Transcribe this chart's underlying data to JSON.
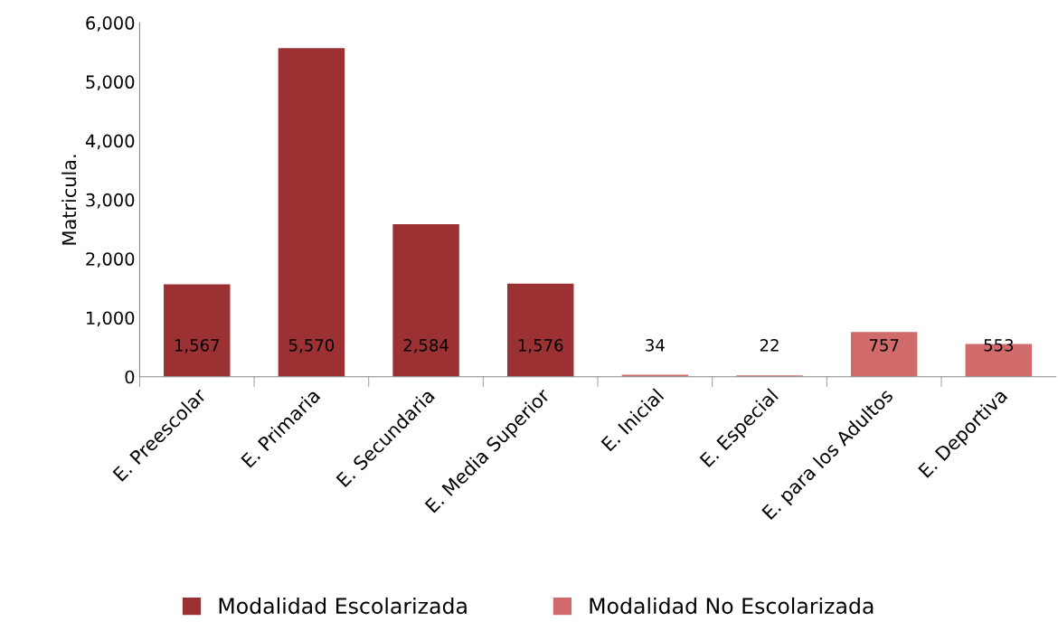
{
  "chart_data": {
    "type": "bar",
    "ylabel": "Matricula.",
    "categories": [
      "E. Preescolar",
      "E. Primaria",
      "E. Secundaria",
      "E. Media Superior",
      "E. Inicial",
      "E. Especial",
      "E. para los Adultos",
      "E. Deportiva"
    ],
    "stacked": true,
    "series": [
      {
        "name": "Modalidad Escolarizada",
        "color": "#9b3133",
        "values": [
          1567,
          5570,
          2584,
          1576,
          null,
          null,
          null,
          null
        ],
        "value_labels": [
          "1,567",
          "5,570",
          "2,584",
          "1,576",
          null,
          null,
          null,
          null
        ]
      },
      {
        "name": "Modalidad No Escolarizada",
        "color": "#d16b6b",
        "values": [
          null,
          null,
          null,
          null,
          34,
          22,
          757,
          553
        ],
        "value_labels": [
          null,
          null,
          null,
          null,
          "34",
          "22",
          "757",
          "553"
        ]
      }
    ],
    "ylim": [
      0,
      6000
    ],
    "yticks": [
      0,
      {
        "value": 1000,
        "label": "1,000"
      },
      {
        "value": 2000,
        "label": "2,000"
      },
      {
        "value": 3000,
        "label": "3,000"
      },
      {
        "value": 4000,
        "label": "4,000"
      },
      {
        "value": 5000,
        "label": "5,000"
      },
      {
        "value": 6000,
        "label": "6,000"
      }
    ],
    "grid": false,
    "legend": "bottom"
  }
}
